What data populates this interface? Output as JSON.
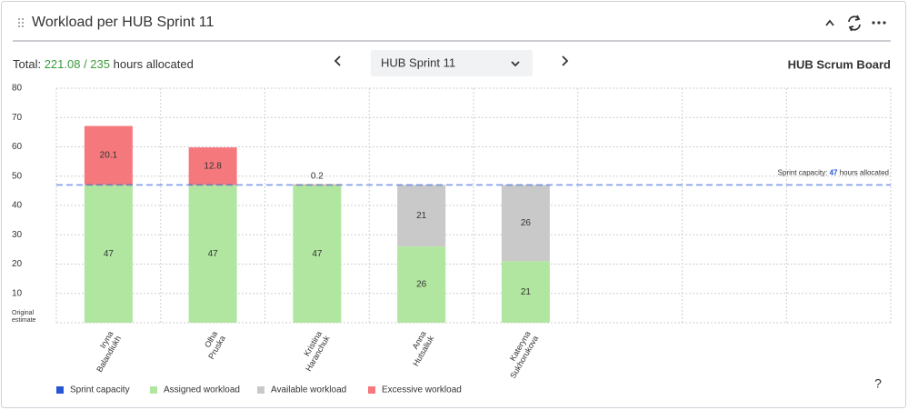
{
  "header": {
    "title": "Workload per HUB Sprint 11"
  },
  "toolbar": {
    "total_label": "Total:",
    "total_value": "221.08 / 235",
    "total_unit": "hours allocated",
    "sprint": "HUB Sprint 11",
    "board_link": "HUB Scrum Board"
  },
  "help": "?",
  "chart_data": {
    "type": "bar",
    "stacked": true,
    "y_label": "Original estimate",
    "categories": [
      "Iryna Balandiukh",
      "Olha Pruska",
      "Kristina Haranchuk",
      "Anna Hutsaliuk",
      "Kateryna Sukhorukova",
      null,
      null,
      null
    ],
    "series": [
      {
        "name": "Assigned workload",
        "color": "#b1e6a0",
        "values": [
          47,
          47,
          47,
          26,
          21,
          null,
          null,
          null
        ]
      },
      {
        "name": "Available workload",
        "color": "#c9c9c9",
        "values": [
          null,
          null,
          null,
          21,
          26,
          null,
          null,
          null
        ]
      },
      {
        "name": "Excessive workload",
        "color": "#f5787c",
        "values": [
          20.1,
          12.8,
          0.2,
          null,
          null,
          null,
          null,
          null
        ]
      }
    ],
    "ylim": [
      0,
      80
    ],
    "yticks": [
      10,
      20,
      30,
      40,
      50,
      60,
      70,
      80
    ],
    "grid": true,
    "capacity": {
      "name": "Sprint capacity",
      "value": 47,
      "color": "#2456d6",
      "label_prefix": "Sprint capacity:",
      "label_suffix": "hours allocated"
    },
    "legend": "bottom-left"
  }
}
